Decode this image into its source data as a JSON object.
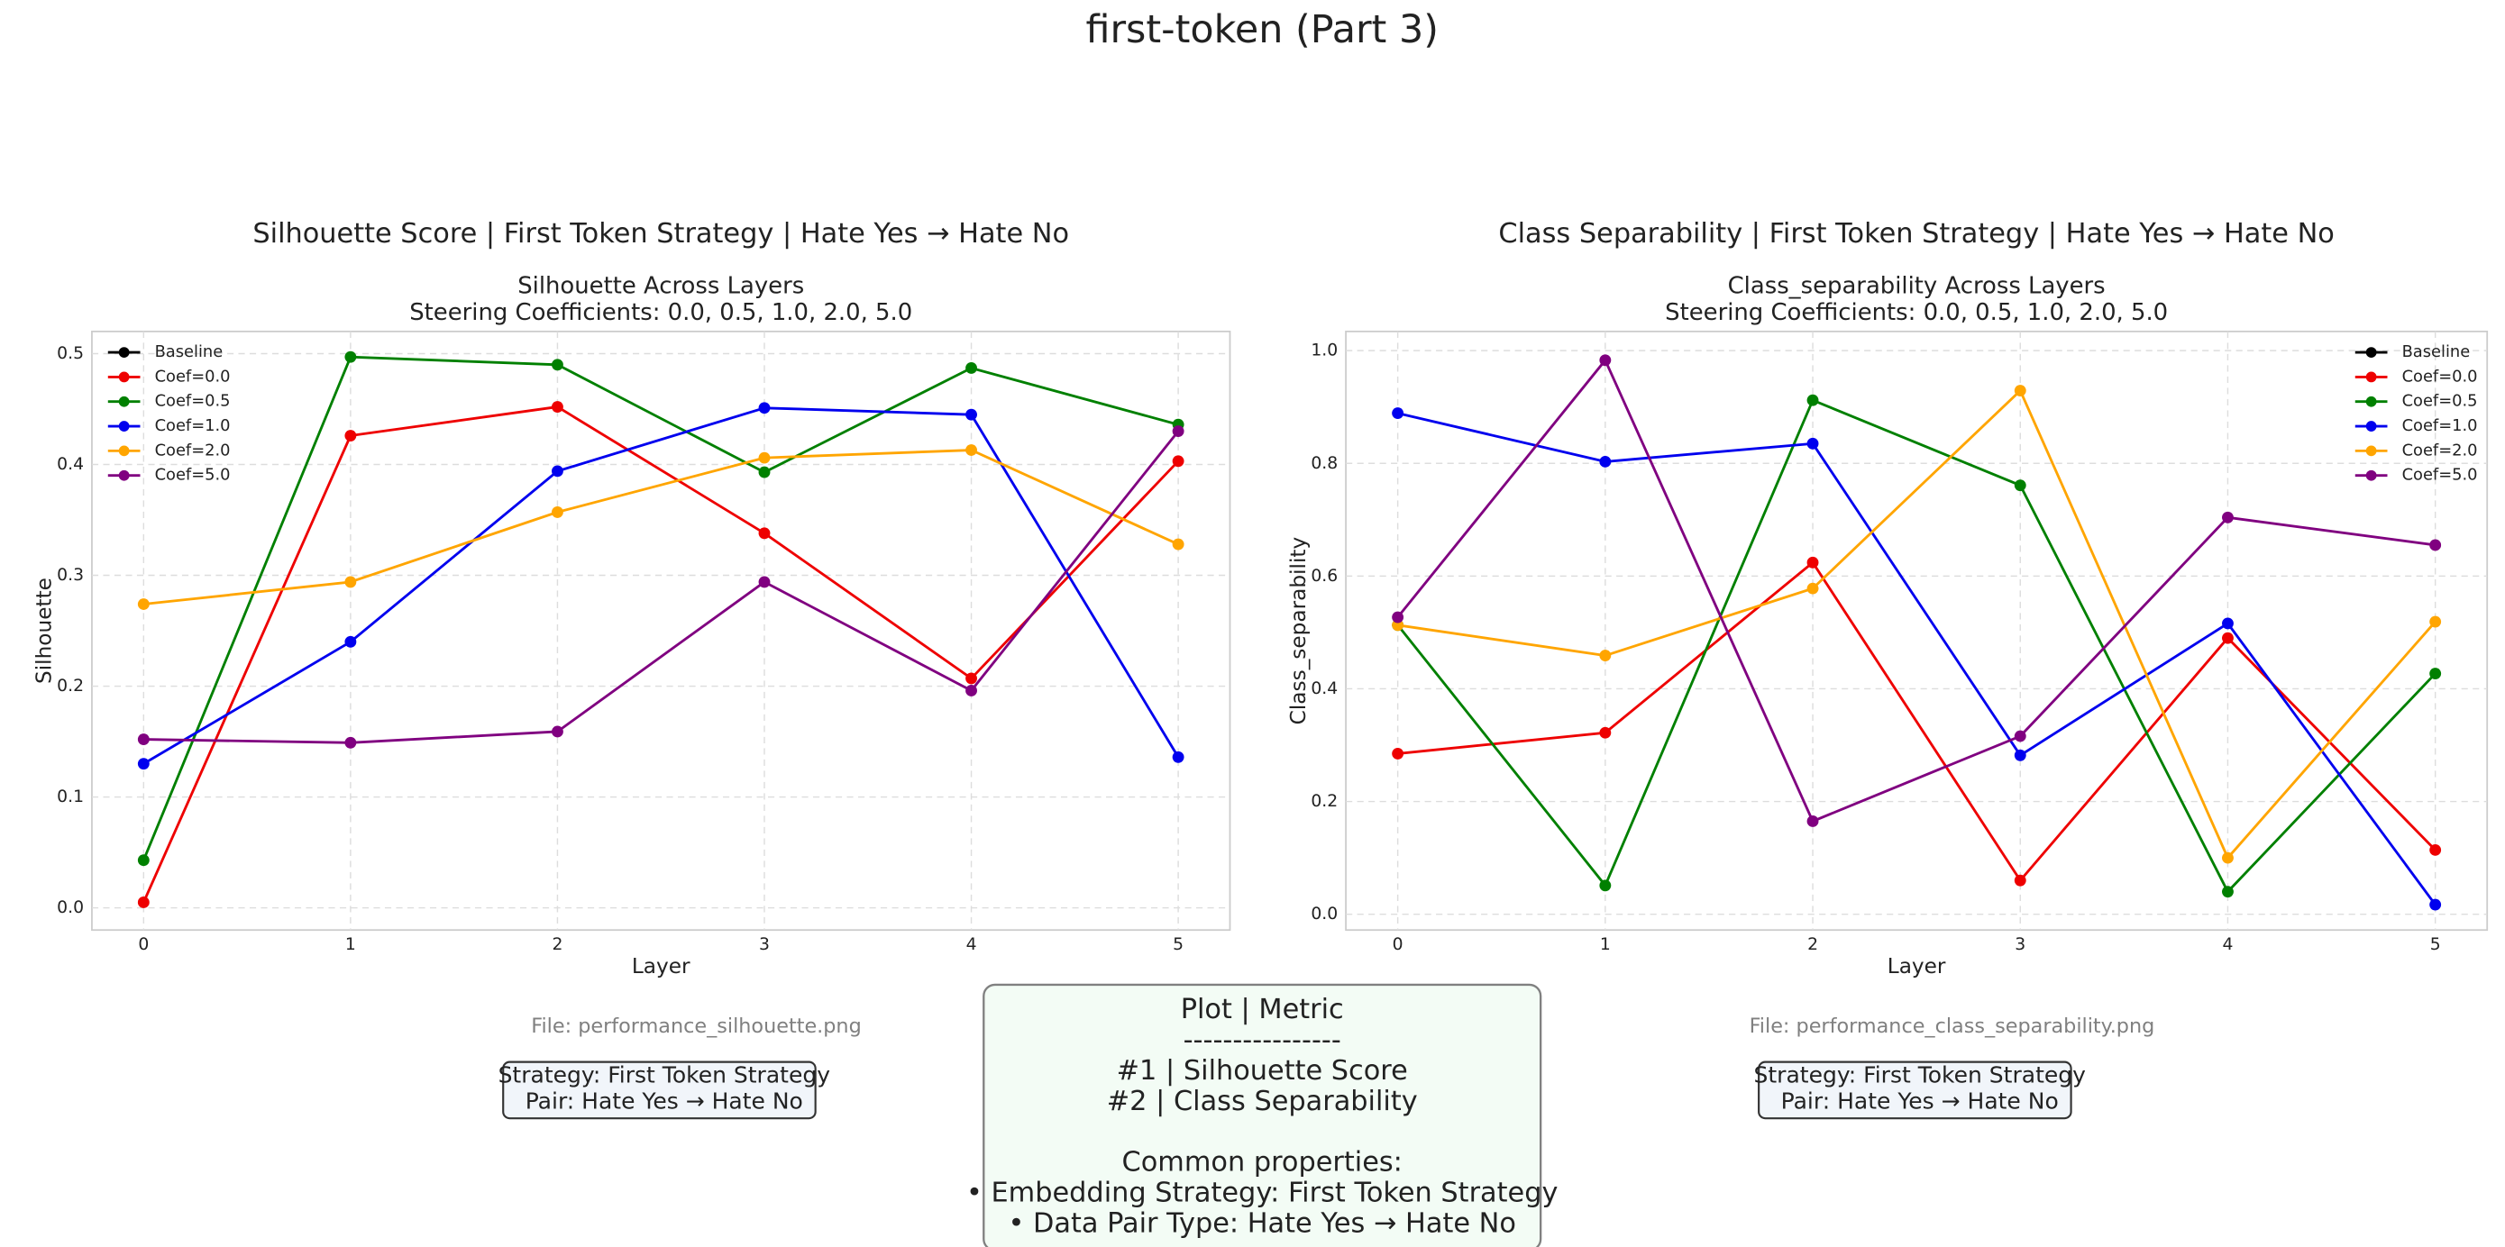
{
  "title": "first-token (Part 3)",
  "chart_data": [
    {
      "type": "line",
      "title": "Silhouette Score | First Token Strategy | Hate Yes → Hate No",
      "subtitle": [
        "Silhouette Across Layers",
        "Steering Coefficients: 0.0, 0.5, 1.0, 2.0, 5.0"
      ],
      "xlabel": "Layer",
      "ylabel": "Silhouette",
      "x": [
        0,
        1,
        2,
        3,
        4,
        5
      ],
      "xlim": [
        -0.25,
        5.25
      ],
      "xticks": [
        0,
        1,
        2,
        3,
        4,
        5
      ],
      "ylim": [
        -0.02,
        0.52
      ],
      "yticks": [
        {
          "value": 0,
          "label": "0.0"
        },
        0.1,
        0.2,
        0.3,
        0.4,
        0.5
      ],
      "grid": true,
      "legend": "upper left",
      "series": [
        {
          "name": "Baseline",
          "color": "#000000",
          "values": [
            null,
            null,
            null,
            null,
            null,
            null
          ]
        },
        {
          "name": "Coef=0.0",
          "color": "#ee0000",
          "values": [
            0.005,
            0.426,
            0.452,
            0.338,
            0.207,
            0.403
          ]
        },
        {
          "name": "Coef=0.5",
          "color": "#008000",
          "values": [
            0.043,
            0.497,
            0.49,
            0.393,
            0.487,
            0.436
          ]
        },
        {
          "name": "Coef=1.0",
          "color": "#0000ee",
          "values": [
            0.13,
            0.24,
            0.394,
            0.451,
            0.445,
            0.136
          ]
        },
        {
          "name": "Coef=2.0",
          "color": "#ffa500",
          "values": [
            0.274,
            0.294,
            0.357,
            0.406,
            0.413,
            0.328
          ]
        },
        {
          "name": "Coef=5.0",
          "color": "#800080",
          "values": [
            0.152,
            0.149,
            0.159,
            0.294,
            0.196,
            0.43
          ]
        }
      ],
      "file": "File: performance_silhouette.png",
      "info": [
        "Strategy: First Token Strategy",
        "Pair: Hate Yes → Hate No"
      ]
    },
    {
      "type": "line",
      "title": "Class Separability | First Token Strategy | Hate Yes → Hate No",
      "subtitle": [
        "Class_separability Across Layers",
        "Steering Coefficients: 0.0, 0.5, 1.0, 2.0, 5.0"
      ],
      "xlabel": "Layer",
      "ylabel": "Class_separability",
      "x": [
        0,
        1,
        2,
        3,
        4,
        5
      ],
      "xlim": [
        -0.25,
        5.25
      ],
      "xticks": [
        0,
        1,
        2,
        3,
        4,
        5
      ],
      "ylim": [
        -0.028,
        1.034
      ],
      "yticks": [
        {
          "value": 0,
          "label": "0.0"
        },
        0.2,
        0.4,
        0.6,
        0.8,
        {
          "value": 1,
          "label": "1.0"
        }
      ],
      "grid": true,
      "legend": "upper right",
      "series": [
        {
          "name": "Baseline",
          "color": "#000000",
          "values": [
            null,
            null,
            null,
            null,
            null,
            null
          ]
        },
        {
          "name": "Coef=0.0",
          "color": "#ee0000",
          "values": [
            0.285,
            0.322,
            0.624,
            0.06,
            0.49,
            0.114
          ]
        },
        {
          "name": "Coef=0.5",
          "color": "#008000",
          "values": [
            0.513,
            0.051,
            0.912,
            0.761,
            0.04,
            0.427
          ]
        },
        {
          "name": "Coef=1.0",
          "color": "#0000ee",
          "values": [
            0.889,
            0.803,
            0.835,
            0.282,
            0.516,
            0.017
          ]
        },
        {
          "name": "Coef=2.0",
          "color": "#ffa500",
          "values": [
            0.513,
            0.459,
            0.578,
            0.929,
            0.1,
            0.519
          ]
        },
        {
          "name": "Coef=5.0",
          "color": "#800080",
          "values": [
            0.527,
            0.983,
            0.165,
            0.316,
            0.704,
            0.655
          ]
        }
      ],
      "file": "File: performance_class_separability.png",
      "info": [
        "Strategy: First Token Strategy",
        "Pair: Hate Yes → Hate No"
      ]
    }
  ],
  "summary": {
    "heading": "Plot | Metric",
    "separator": "----------------",
    "rows": [
      "#1 | Silhouette Score",
      "#2 | Class Separability"
    ],
    "common_heading": "Common properties:",
    "common": [
      "• Embedding Strategy: First Token Strategy",
      "• Data Pair Type: Hate Yes → Hate No"
    ]
  }
}
